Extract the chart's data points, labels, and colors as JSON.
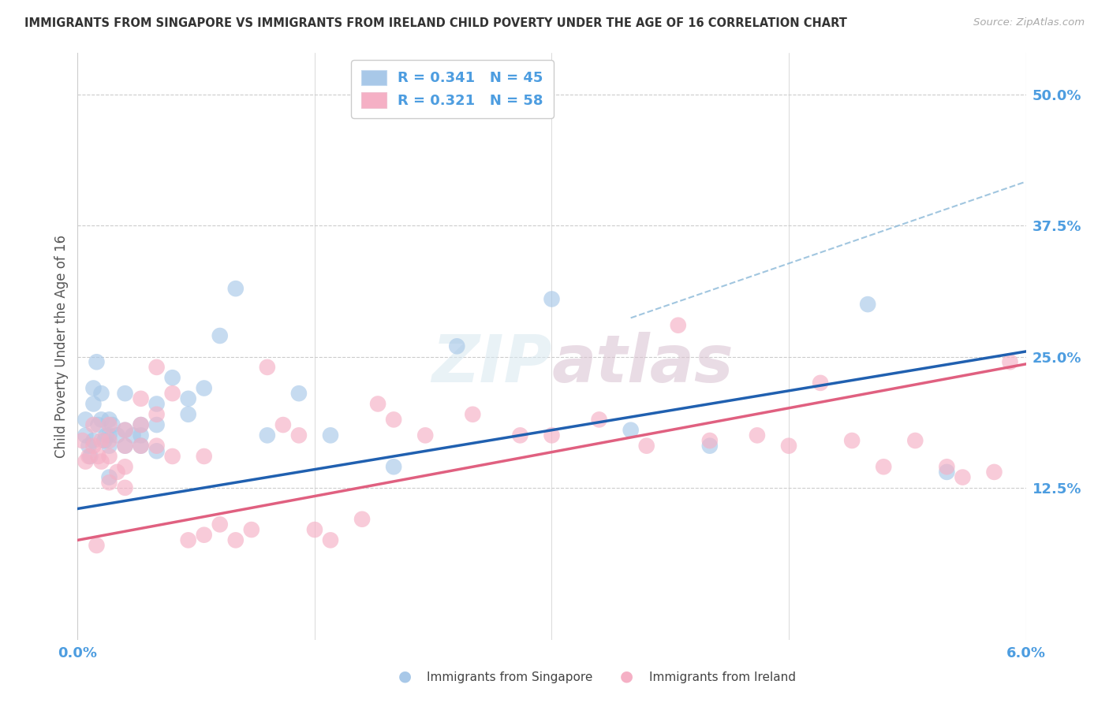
{
  "title": "IMMIGRANTS FROM SINGAPORE VS IMMIGRANTS FROM IRELAND CHILD POVERTY UNDER THE AGE OF 16 CORRELATION CHART",
  "source": "Source: ZipAtlas.com",
  "ylabel_label": "Child Poverty Under the Age of 16",
  "ytick_labels": [
    "50.0%",
    "37.5%",
    "25.0%",
    "12.5%"
  ],
  "ytick_values": [
    0.5,
    0.375,
    0.25,
    0.125
  ],
  "xlim": [
    0.0,
    0.06
  ],
  "ylim": [
    -0.02,
    0.54
  ],
  "singapore_color": "#a8c8e8",
  "ireland_color": "#f5b0c5",
  "singapore_line_color": "#2060b0",
  "ireland_line_color": "#e06080",
  "singapore_R": 0.341,
  "singapore_N": 45,
  "ireland_R": 0.321,
  "ireland_N": 58,
  "legend_label_singapore": "Immigrants from Singapore",
  "legend_label_ireland": "Immigrants from Ireland",
  "sg_intercept": 0.105,
  "sg_slope": 2.5,
  "ir_intercept": 0.075,
  "ir_slope": 2.8,
  "singapore_x": [
    0.0005,
    0.0005,
    0.0007,
    0.0008,
    0.001,
    0.001,
    0.001,
    0.0012,
    0.0013,
    0.0015,
    0.0015,
    0.0017,
    0.0018,
    0.002,
    0.002,
    0.002,
    0.002,
    0.0022,
    0.0025,
    0.003,
    0.003,
    0.003,
    0.0035,
    0.004,
    0.004,
    0.004,
    0.005,
    0.005,
    0.005,
    0.006,
    0.007,
    0.007,
    0.008,
    0.009,
    0.01,
    0.012,
    0.014,
    0.016,
    0.02,
    0.024,
    0.03,
    0.035,
    0.04,
    0.05,
    0.055
  ],
  "singapore_y": [
    0.19,
    0.175,
    0.165,
    0.155,
    0.22,
    0.205,
    0.17,
    0.245,
    0.185,
    0.215,
    0.19,
    0.17,
    0.175,
    0.19,
    0.175,
    0.165,
    0.135,
    0.185,
    0.175,
    0.215,
    0.18,
    0.165,
    0.175,
    0.185,
    0.175,
    0.165,
    0.205,
    0.185,
    0.16,
    0.23,
    0.21,
    0.195,
    0.22,
    0.27,
    0.315,
    0.175,
    0.215,
    0.175,
    0.145,
    0.26,
    0.305,
    0.18,
    0.165,
    0.3,
    0.14
  ],
  "ireland_x": [
    0.0003,
    0.0005,
    0.0007,
    0.001,
    0.001,
    0.0012,
    0.0013,
    0.0015,
    0.0015,
    0.002,
    0.002,
    0.002,
    0.002,
    0.0025,
    0.003,
    0.003,
    0.003,
    0.003,
    0.004,
    0.004,
    0.004,
    0.005,
    0.005,
    0.005,
    0.006,
    0.006,
    0.007,
    0.008,
    0.008,
    0.009,
    0.01,
    0.011,
    0.012,
    0.013,
    0.014,
    0.015,
    0.016,
    0.018,
    0.019,
    0.02,
    0.022,
    0.025,
    0.028,
    0.03,
    0.033,
    0.036,
    0.038,
    0.04,
    0.043,
    0.045,
    0.047,
    0.049,
    0.051,
    0.053,
    0.055,
    0.056,
    0.058,
    0.059
  ],
  "ireland_y": [
    0.17,
    0.15,
    0.155,
    0.185,
    0.165,
    0.07,
    0.155,
    0.17,
    0.15,
    0.185,
    0.17,
    0.155,
    0.13,
    0.14,
    0.18,
    0.165,
    0.145,
    0.125,
    0.21,
    0.185,
    0.165,
    0.24,
    0.195,
    0.165,
    0.215,
    0.155,
    0.075,
    0.08,
    0.155,
    0.09,
    0.075,
    0.085,
    0.24,
    0.185,
    0.175,
    0.085,
    0.075,
    0.095,
    0.205,
    0.19,
    0.175,
    0.195,
    0.175,
    0.175,
    0.19,
    0.165,
    0.28,
    0.17,
    0.175,
    0.165,
    0.225,
    0.17,
    0.145,
    0.17,
    0.145,
    0.135,
    0.14,
    0.245
  ],
  "watermark": "ZIPatlas",
  "background_color": "#ffffff",
  "grid_color": "#cccccc",
  "axis_label_color": "#4d9de0",
  "title_color": "#333333",
  "legend_text_color": "#333333",
  "legend_rn_color": "#4d9de0"
}
